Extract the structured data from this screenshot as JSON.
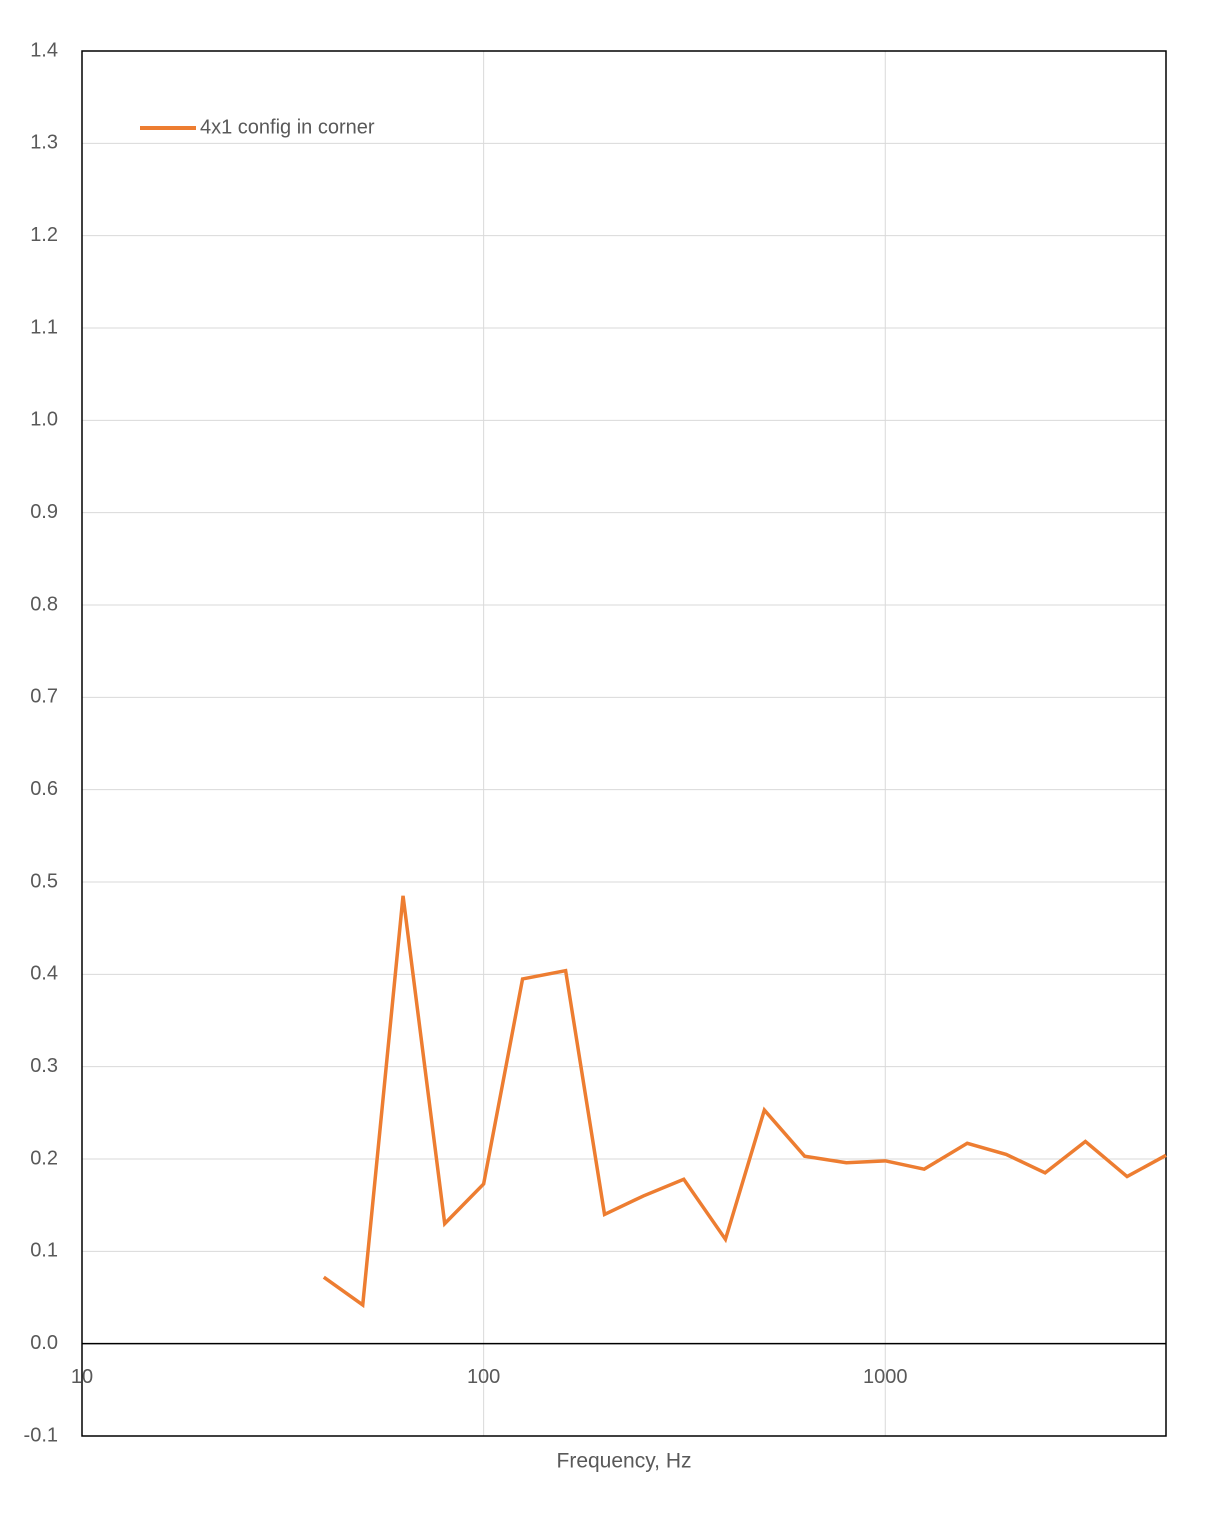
{
  "chart_data": {
    "type": "line",
    "x_label": "Frequency, Hz",
    "x": [
      40,
      50,
      63,
      80,
      100,
      125,
      160,
      200,
      250,
      315,
      400,
      500,
      630,
      800,
      1000,
      1250,
      1600,
      2000,
      2500,
      3150,
      4000,
      5000
    ],
    "series": [
      {
        "name": "4x1 config in corner",
        "color": "#ed7d31",
        "values": [
          0.072,
          0.042,
          0.485,
          0.13,
          0.173,
          0.395,
          0.404,
          0.14,
          0.16,
          0.178,
          0.113,
          0.253,
          0.203,
          0.196,
          0.198,
          0.189,
          0.217,
          0.205,
          0.185,
          0.219,
          0.181,
          0.204
        ]
      }
    ],
    "xlim": [
      10,
      5000
    ],
    "xticks": [
      10,
      100,
      1000
    ],
    "x_log": true,
    "ylim": [
      -0.1,
      1.4
    ],
    "yticks": [
      -0.1,
      {
        "value": 0,
        "label": "0.0"
      },
      0.1,
      0.2,
      0.3,
      0.4,
      0.5,
      0.6,
      0.7,
      0.8,
      0.9,
      {
        "value": 1,
        "label": "1.0"
      },
      1.1,
      1.2,
      1.3,
      1.4
    ],
    "grid": true,
    "legend": "top-left"
  }
}
